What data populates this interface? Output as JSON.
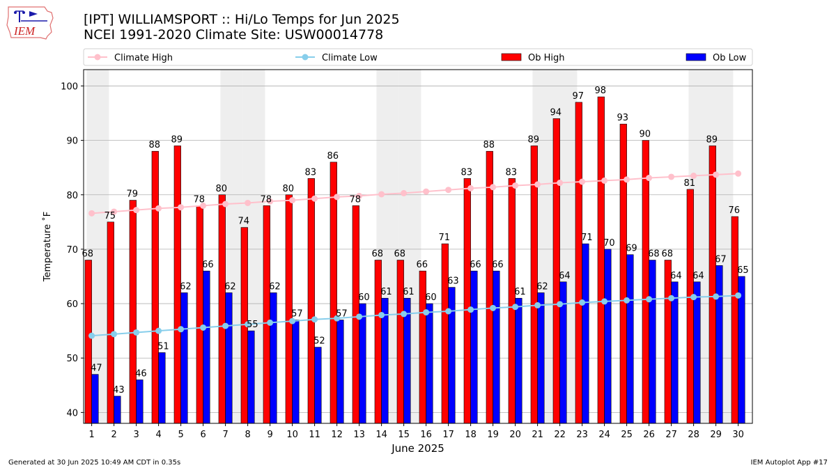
{
  "header": {
    "title_line1": "[IPT] WILLIAMSPORT :: Hi/Lo Temps for Jun 2025",
    "title_line2": "NCEI 1991-2020 Climate Site: USW00014778",
    "logo_text": "IEM"
  },
  "footer": {
    "left": "Generated at 30 Jun 2025 10:49 AM CDT in 0.35s",
    "right": "IEM Autoplot App #17"
  },
  "colors": {
    "ob_high": "#ff0000",
    "ob_low": "#0000ff",
    "climate_high": "#ffc0cb",
    "climate_low": "#87ceeb",
    "weekend_band": "#eeeeee",
    "grid": "#b0b0b0"
  },
  "chart_data": {
    "type": "bar",
    "xlabel": "June 2025",
    "ylabel": "Temperature ˚F",
    "ylim": [
      38,
      103
    ],
    "yticks": [
      40,
      50,
      60,
      70,
      80,
      90,
      100
    ],
    "grid": "horizontal",
    "legend_position": "top",
    "categories": [
      "1",
      "2",
      "3",
      "4",
      "5",
      "6",
      "7",
      "8",
      "9",
      "10",
      "11",
      "12",
      "13",
      "14",
      "15",
      "16",
      "17",
      "18",
      "19",
      "20",
      "21",
      "22",
      "23",
      "24",
      "25",
      "26",
      "27",
      "28",
      "29",
      "30"
    ],
    "weekend_days": [
      1,
      7,
      8,
      14,
      15,
      21,
      22,
      28,
      29
    ],
    "series": [
      {
        "name": "Ob High",
        "kind": "bar",
        "values": [
          68,
          75,
          79,
          88,
          89,
          78,
          80,
          74,
          78,
          80,
          83,
          86,
          78,
          68,
          68,
          66,
          71,
          83,
          88,
          83,
          89,
          94,
          97,
          98,
          93,
          90,
          68,
          81,
          89,
          76
        ]
      },
      {
        "name": "Ob Low",
        "kind": "bar",
        "values": [
          47,
          43,
          46,
          51,
          62,
          66,
          62,
          55,
          62,
          57,
          52,
          57,
          60,
          61,
          61,
          60,
          63,
          66,
          66,
          61,
          62,
          64,
          71,
          70,
          69,
          68,
          64,
          64,
          67,
          65
        ]
      },
      {
        "name": "Climate High",
        "kind": "line",
        "values": [
          76.6,
          76.9,
          77.2,
          77.5,
          77.7,
          78.0,
          78.3,
          78.5,
          78.8,
          79.0,
          79.3,
          79.6,
          79.8,
          80.1,
          80.3,
          80.6,
          80.9,
          81.2,
          81.4,
          81.7,
          81.9,
          82.2,
          82.4,
          82.6,
          82.8,
          83.1,
          83.3,
          83.5,
          83.7,
          83.9
        ]
      },
      {
        "name": "Climate Low",
        "kind": "line",
        "values": [
          54.1,
          54.4,
          54.7,
          55.0,
          55.3,
          55.6,
          55.9,
          56.2,
          56.5,
          56.8,
          57.1,
          57.3,
          57.6,
          57.9,
          58.1,
          58.4,
          58.6,
          58.9,
          59.2,
          59.4,
          59.7,
          59.9,
          60.2,
          60.4,
          60.6,
          60.8,
          61.0,
          61.2,
          61.3,
          61.5
        ]
      }
    ]
  }
}
